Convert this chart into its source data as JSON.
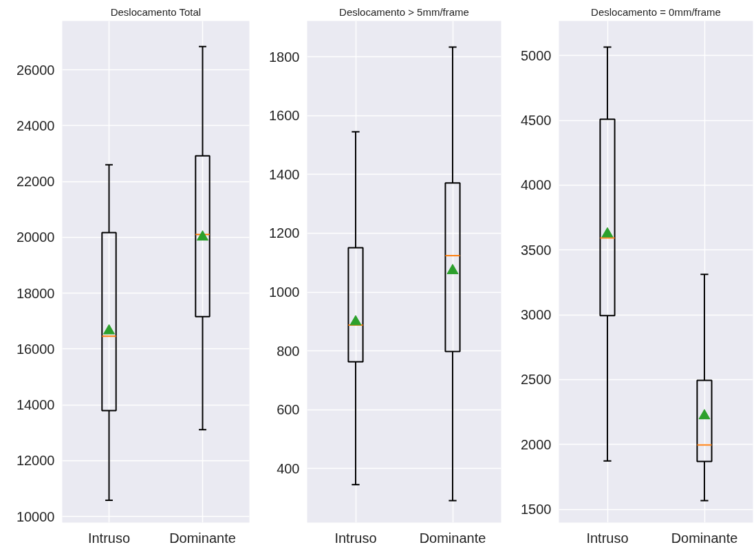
{
  "chart_data": [
    {
      "type": "box",
      "title": "Deslocamento Total",
      "categories": [
        "Intruso",
        "Dominante"
      ],
      "boxes": [
        {
          "low": 10580,
          "q1": 13790,
          "median": 16460,
          "q3": 20170,
          "high": 22600,
          "mean": 16650
        },
        {
          "low": 13110,
          "q1": 17160,
          "median": 20100,
          "q3": 22920,
          "high": 26830,
          "mean": 20010
        }
      ],
      "ylim": [
        9780,
        27750
      ],
      "yticks": [
        10000,
        12000,
        14000,
        16000,
        18000,
        20000,
        22000,
        24000,
        26000
      ],
      "grid": true,
      "marker": "triangle"
    },
    {
      "type": "box",
      "title": "Deslocamento > 5mm/frame",
      "categories": [
        "Intruso",
        "Dominante"
      ],
      "boxes": [
        {
          "low": 345,
          "q1": 763,
          "median": 888,
          "q3": 1151,
          "high": 1545,
          "mean": 899
        },
        {
          "low": 291,
          "q1": 798,
          "median": 1124,
          "q3": 1371,
          "high": 1833,
          "mean": 1073
        }
      ],
      "ylim": [
        216,
        1922
      ],
      "yticks": [
        400,
        600,
        800,
        1000,
        1200,
        1400,
        1600,
        1800
      ],
      "grid": true,
      "marker": "triangle"
    },
    {
      "type": "box",
      "title": "Deslocamento = 0mm/frame",
      "categories": [
        "Intruso",
        "Dominante"
      ],
      "boxes": [
        {
          "low": 1873,
          "q1": 2993,
          "median": 3592,
          "q3": 4508,
          "high": 5064,
          "mean": 3624
        },
        {
          "low": 1566,
          "q1": 1869,
          "median": 1996,
          "q3": 2494,
          "high": 3311,
          "mean": 2221
        }
      ],
      "ylim": [
        1397,
        5266
      ],
      "yticks": [
        1500,
        2000,
        2500,
        3000,
        3500,
        4000,
        4500,
        5000
      ],
      "grid": true,
      "marker": "triangle"
    }
  ]
}
